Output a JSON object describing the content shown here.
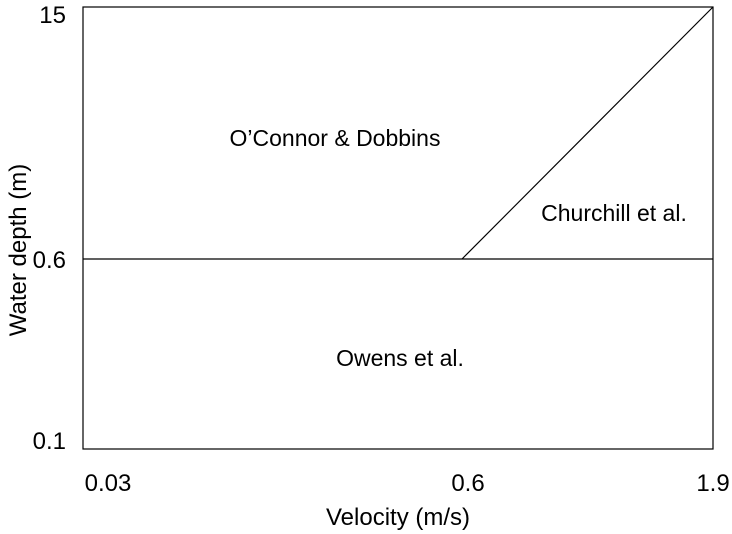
{
  "chart_data": {
    "type": "diagram",
    "x_label": "Velocity (m/s)",
    "y_label": "Water depth (m)",
    "x_ticks": [
      "0.03",
      "0.6",
      "1.9"
    ],
    "y_ticks": [
      "15",
      "0.6",
      "0.1"
    ],
    "x_range": [
      0.03,
      1.9
    ],
    "y_range": [
      0.1,
      15
    ],
    "boundaries": [
      {
        "from": {
          "velocity": 0.03,
          "depth": 0.6
        },
        "to": {
          "velocity": 1.9,
          "depth": 0.6
        }
      },
      {
        "from": {
          "velocity": 0.6,
          "depth": 0.6
        },
        "to": {
          "velocity": 1.9,
          "depth": 15
        }
      }
    ],
    "regions": [
      {
        "label": "O’Connor & Dobbins"
      },
      {
        "label": "Churchill et al."
      },
      {
        "label": "Owens et al."
      }
    ],
    "grid": false
  }
}
